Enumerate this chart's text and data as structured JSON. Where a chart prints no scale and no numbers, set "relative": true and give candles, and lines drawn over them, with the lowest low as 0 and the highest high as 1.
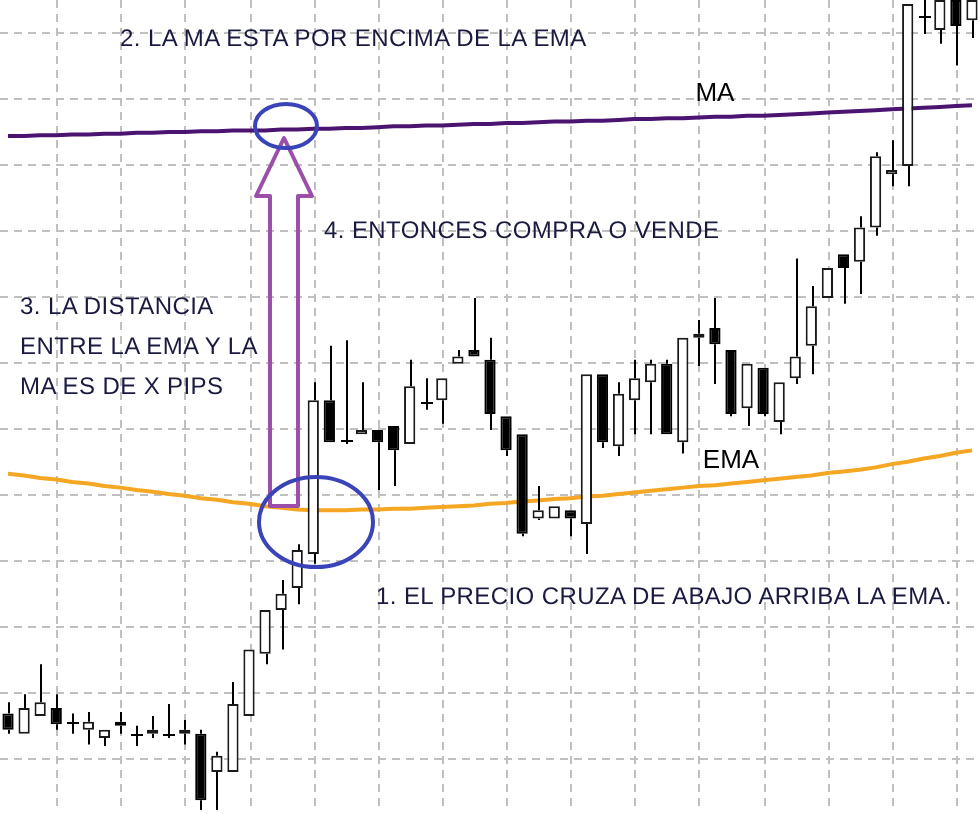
{
  "chart_data": {
    "type": "candlestick",
    "relative": true,
    "grid": true,
    "tick_labels": false,
    "categories": [
      null,
      null,
      null,
      null,
      null,
      null,
      null,
      null,
      null,
      null,
      null,
      null,
      null,
      null,
      null,
      null,
      null,
      null,
      null,
      null,
      null,
      null,
      null,
      null,
      null,
      null,
      null,
      null,
      null,
      null,
      null,
      null,
      null,
      null,
      null,
      null,
      null,
      null,
      null,
      null,
      null,
      null,
      null,
      null,
      null,
      null,
      null,
      null,
      null,
      null,
      null,
      null,
      null,
      null,
      null,
      null,
      null,
      null,
      null,
      null,
      null
    ],
    "ohlc": [
      [
        0.119,
        0.133,
        0.094,
        0.099
      ],
      [
        0.094,
        0.143,
        0.094,
        0.126
      ],
      [
        0.116,
        0.18,
        0.116,
        0.133
      ],
      [
        0.126,
        0.143,
        0.099,
        0.106
      ],
      [
        0.109,
        0.119,
        0.094,
        0.109
      ],
      [
        0.099,
        0.121,
        0.081,
        0.109
      ],
      [
        0.089,
        0.099,
        0.079,
        0.099
      ],
      [
        0.109,
        0.121,
        0.094,
        0.104
      ],
      [
        0.094,
        0.104,
        0.079,
        0.094
      ],
      [
        0.094,
        0.116,
        0.089,
        0.099
      ],
      [
        0.094,
        0.131,
        0.089,
        0.094
      ],
      [
        0.094,
        0.111,
        0.081,
        0.099
      ],
      [
        0.094,
        0.099,
        0,
        0.012
      ],
      [
        0.047,
        0.072,
        0,
        0.067
      ],
      [
        0.047,
        0.158,
        0.047,
        0.131
      ],
      [
        0.116,
        0.198,
        0.116,
        0.198
      ],
      [
        0.193,
        0.247,
        0.18,
        0.247
      ],
      [
        0.247,
        0.284,
        0.198,
        0.267
      ],
      [
        0.274,
        0.328,
        0.254,
        0.321
      ],
      [
        0.316,
        0.528,
        0.304,
        0.506
      ],
      [
        0.506,
        0.573,
        0.454,
        0.454
      ],
      [
        0.457,
        0.58,
        0.452,
        0.457
      ],
      [
        0.464,
        0.528,
        0.464,
        0.469
      ],
      [
        0.469,
        0.469,
        0.395,
        0.454
      ],
      [
        0.474,
        0.474,
        0.4,
        0.444
      ],
      [
        0.452,
        0.556,
        0.452,
        0.523
      ],
      [
        0.504,
        0.533,
        0.494,
        0.504
      ],
      [
        0.506,
        0.533,
        0.477,
        0.533
      ],
      [
        0.551,
        0.568,
        0.551,
        0.56
      ],
      [
        0.568,
        0.632,
        0.56,
        0.56
      ],
      [
        0.556,
        0.583,
        0.469,
        0.489
      ],
      [
        0.486,
        0.486,
        0.437,
        0.444
      ],
      [
        0.464,
        0.464,
        0.338,
        0.341
      ],
      [
        0.36,
        0.4,
        0.358,
        0.37
      ],
      [
        0.36,
        0.375,
        0.36,
        0.375
      ],
      [
        0.37,
        0.37,
        0.338,
        0.36
      ],
      [
        0.353,
        0.538,
        0.316,
        0.538
      ],
      [
        0.538,
        0.538,
        0.447,
        0.454
      ],
      [
        0.449,
        0.528,
        0.437,
        0.514
      ],
      [
        0.506,
        0.556,
        0.464,
        0.533
      ],
      [
        0.528,
        0.556,
        0.464,
        0.551
      ],
      [
        0.551,
        0.556,
        0.464,
        0.464
      ],
      [
        0.454,
        0.583,
        0.44,
        0.583
      ],
      [
        0.583,
        0.605,
        0.548,
        0.588
      ],
      [
        0.595,
        0.632,
        0.526,
        0.575
      ],
      [
        0.568,
        0.568,
        0.486,
        0.489
      ],
      [
        0.496,
        0.551,
        0.474,
        0.551
      ],
      [
        0.546,
        0.546,
        0.486,
        0.489
      ],
      [
        0.479,
        0.528,
        0.464,
        0.528
      ],
      [
        0.533,
        0.681,
        0.526,
        0.56
      ],
      [
        0.573,
        0.647,
        0.538,
        0.622
      ],
      [
        0.632,
        0.669,
        0.632,
        0.669
      ],
      [
        0.686,
        0.686,
        0.625,
        0.669
      ],
      [
        0.677,
        0.733,
        0.637,
        0.719
      ],
      [
        0.719,
        0.812,
        0.709,
        0.807
      ],
      [
        0.785,
        0.827,
        0.77,
        0.79
      ],
      [
        0.795,
        0.995,
        0.77,
        0.995
      ],
      [
        0.98,
        1,
        0.958,
        0.98
      ],
      [
        0.963,
        1,
        0.946,
        1
      ],
      [
        1,
        1,
        0.919,
        0.968
      ],
      [
        0.975,
        1,
        0.953,
        1
      ]
    ],
    "series": [
      {
        "name": "MA",
        "type": "line",
        "color": "#4b1470",
        "values": [
          0.832,
          0.832,
          0.833,
          0.833,
          0.834,
          0.834,
          0.835,
          0.835,
          0.836,
          0.836,
          0.837,
          0.837,
          0.838,
          0.838,
          0.839,
          0.839,
          0.839,
          0.84,
          0.84,
          0.841,
          0.841,
          0.842,
          0.842,
          0.843,
          0.844,
          0.844,
          0.845,
          0.845,
          0.846,
          0.847,
          0.847,
          0.848,
          0.848,
          0.849,
          0.85,
          0.85,
          0.851,
          0.851,
          0.852,
          0.853,
          0.853,
          0.854,
          0.854,
          0.855,
          0.856,
          0.856,
          0.857,
          0.857,
          0.858,
          0.859,
          0.86,
          0.861,
          0.862,
          0.863,
          0.864,
          0.865,
          0.866,
          0.867,
          0.868,
          0.869,
          0.87
        ]
      },
      {
        "name": "EMA",
        "type": "line",
        "color": "#f5a623",
        "values": [
          0.415,
          0.413,
          0.41,
          0.408,
          0.405,
          0.403,
          0.4,
          0.398,
          0.395,
          0.393,
          0.39,
          0.388,
          0.385,
          0.383,
          0.38,
          0.378,
          0.375,
          0.373,
          0.371,
          0.37,
          0.37,
          0.37,
          0.371,
          0.371,
          0.372,
          0.372,
          0.373,
          0.374,
          0.375,
          0.376,
          0.378,
          0.379,
          0.381,
          0.382,
          0.384,
          0.385,
          0.387,
          0.388,
          0.39,
          0.392,
          0.394,
          0.396,
          0.398,
          0.4,
          0.401,
          0.403,
          0.405,
          0.407,
          0.409,
          0.411,
          0.413,
          0.416,
          0.418,
          0.42,
          0.423,
          0.427,
          0.43,
          0.434,
          0.437,
          0.441,
          0.444
        ]
      }
    ],
    "annotations": [
      "2. LA MA ESTA POR ENCIMA DE LA EMA",
      "4. ENTONCES COMPRA O VENDE",
      "3. LA DISTANCIA ENTRE LA EMA Y LA MA ES DE X PIPS",
      "1. EL PRECIO CRUZA DE ABAJO ARRIBA LA EMA."
    ]
  }
}
